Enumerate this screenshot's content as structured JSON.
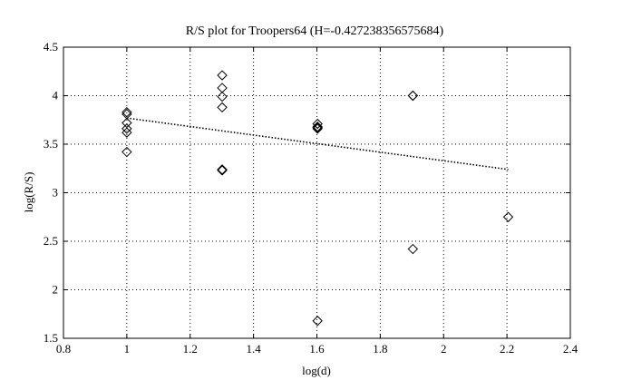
{
  "chart_data": {
    "type": "scatter",
    "title": "R/S plot for Troopers64 (H=-0.427238356575684)",
    "xlabel": "log(d)",
    "ylabel": "log(R/S)",
    "xlim": [
      0.8,
      2.4
    ],
    "ylim": [
      1.5,
      4.5
    ],
    "xticks": [
      0.8,
      1,
      1.2,
      1.4,
      1.6,
      1.8,
      2,
      2.2,
      2.4
    ],
    "yticks": [
      1.5,
      2,
      2.5,
      3,
      3.5,
      4,
      4.5
    ],
    "xtick_labels": [
      "0.8",
      "1",
      "1.2",
      "1.4",
      "1.6",
      "1.8",
      "2",
      "2.2",
      "2.4"
    ],
    "ytick_labels": [
      "1.5",
      "2",
      "2.5",
      "3",
      "3.5",
      "4",
      "4.5"
    ],
    "grid": true,
    "series": [
      {
        "marker": "diamond",
        "points": [
          [
            1.0,
            3.83
          ],
          [
            1.0,
            3.81
          ],
          [
            1.0,
            3.72
          ],
          [
            1.0,
            3.66
          ],
          [
            1.0,
            3.62
          ],
          [
            1.0,
            3.42
          ],
          [
            1.301,
            4.21
          ],
          [
            1.301,
            4.08
          ],
          [
            1.301,
            3.99
          ],
          [
            1.301,
            3.88
          ],
          [
            1.301,
            3.24
          ],
          [
            1.301,
            3.23
          ],
          [
            1.602,
            3.71
          ],
          [
            1.602,
            3.68
          ],
          [
            1.602,
            3.67
          ],
          [
            1.602,
            3.66
          ],
          [
            1.602,
            1.68
          ],
          [
            1.903,
            4.0
          ],
          [
            1.903,
            4.0
          ],
          [
            1.903,
            2.42
          ],
          [
            2.204,
            2.75
          ]
        ]
      },
      {
        "type": "line",
        "style": "dotted",
        "points": [
          [
            1.0,
            3.77
          ],
          [
            2.204,
            3.24
          ]
        ]
      }
    ]
  }
}
